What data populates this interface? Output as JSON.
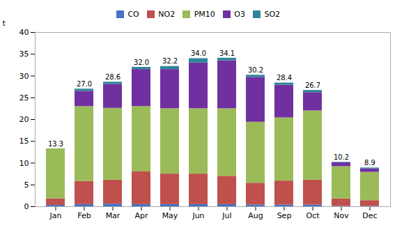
{
  "chart_data": {
    "type": "bar",
    "stacked": true,
    "ylabel": "t",
    "categories": [
      "Jan",
      "Feb",
      "Mar",
      "Apr",
      "May",
      "Jun",
      "Jul",
      "Aug",
      "Sep",
      "Oct",
      "Nov",
      "Dec"
    ],
    "series": [
      {
        "name": "CO",
        "color": "#4472c4",
        "values": [
          0.3,
          0.5,
          0.6,
          0.5,
          0.5,
          0.5,
          0.5,
          0.4,
          0.4,
          0.4,
          0.1,
          0.1
        ]
      },
      {
        "name": "NO2",
        "color": "#c0504d",
        "values": [
          1.5,
          5.3,
          5.5,
          7.5,
          7.0,
          7.0,
          6.5,
          5.0,
          5.5,
          5.7,
          1.7,
          1.3
        ]
      },
      {
        "name": "PM10",
        "color": "#9bbb59",
        "values": [
          11.5,
          17.2,
          16.5,
          15.0,
          15.0,
          15.0,
          15.5,
          14.0,
          14.5,
          15.9,
          7.4,
          6.5
        ]
      },
      {
        "name": "O3",
        "color": "#7030a0",
        "values": [
          0.0,
          3.5,
          5.5,
          8.5,
          9.0,
          10.5,
          11.0,
          10.3,
          7.5,
          4.2,
          0.9,
          0.8
        ]
      },
      {
        "name": "SO2",
        "color": "#31849b",
        "values": [
          0.0,
          0.5,
          0.5,
          0.5,
          0.7,
          1.0,
          0.6,
          0.5,
          0.5,
          0.5,
          0.1,
          0.2
        ]
      }
    ],
    "totals": [
      13.3,
      27.0,
      28.6,
      32.0,
      32.2,
      34.0,
      34.1,
      30.2,
      28.4,
      26.7,
      10.2,
      8.9
    ],
    "total_labels": [
      "13.3",
      "27.0",
      "28.6",
      "32.0",
      "32.2",
      "34.0",
      "34.1",
      "30.2",
      "28.4",
      "26.7",
      "10.2",
      "8.9"
    ],
    "ylim": [
      0,
      40
    ],
    "yticks": [
      0,
      5,
      10,
      15,
      20,
      25,
      30,
      35,
      40
    ],
    "grid": false,
    "legend": "top"
  }
}
